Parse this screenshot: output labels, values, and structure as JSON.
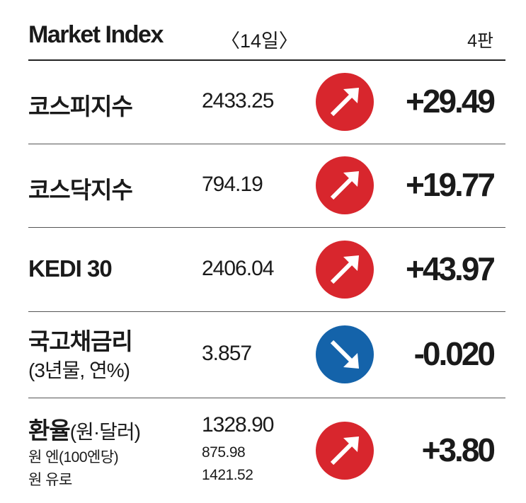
{
  "header": {
    "title": "Market Index",
    "date": "〈14일〉",
    "edition": "4판"
  },
  "icon_colors": {
    "up": "#d8262d",
    "down": "#1463aa"
  },
  "rows": [
    {
      "name": "코스피지수",
      "value": "2433.25",
      "direction": "up",
      "change": "+29.49"
    },
    {
      "name": "코스닥지수",
      "value": "794.19",
      "direction": "up",
      "change": "+19.77"
    },
    {
      "name": "KEDI 30",
      "value": "2406.04",
      "direction": "up",
      "change": "+43.97"
    },
    {
      "name": "국고채금리",
      "name_sub": "(3년물, 연%)",
      "value": "3.857",
      "direction": "down",
      "change": "-0.020"
    },
    {
      "name": "환율",
      "name_sub": "(원·달러)",
      "value": "1328.90",
      "direction": "up",
      "change": "+3.80",
      "extra": [
        {
          "label": "원 엔(100엔당)",
          "value": "875.98"
        },
        {
          "label": "원 유로",
          "value": "1421.52"
        }
      ]
    }
  ]
}
